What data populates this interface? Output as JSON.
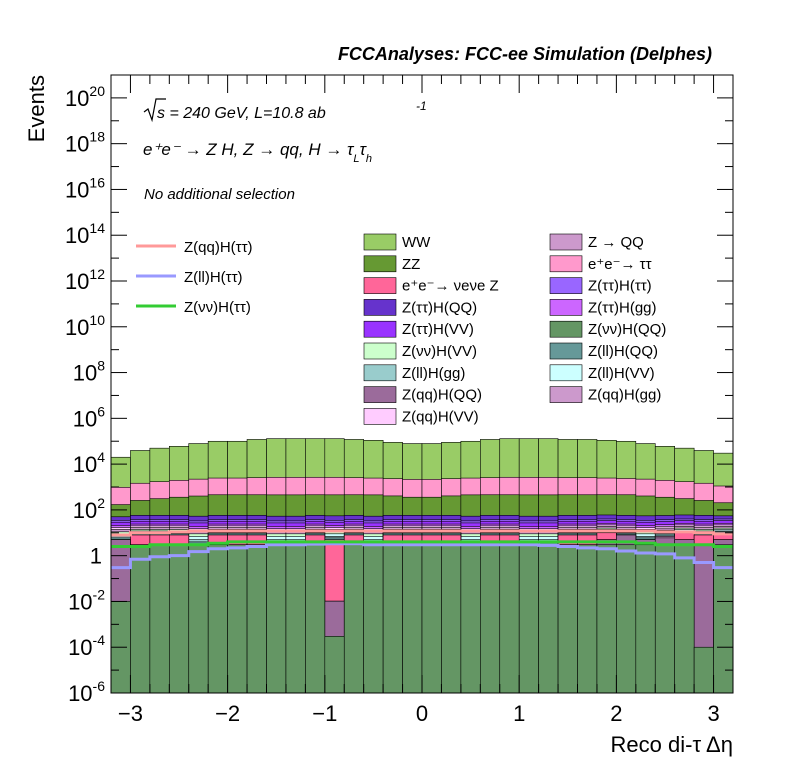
{
  "chart_data": {
    "type": "stacked-histogram",
    "title": "FCCAnalyses: FCC-ee Simulation (Delphes)",
    "xlabel": "Reco di-τ Δη",
    "ylabel": "Events",
    "xlim": [
      -3.2,
      3.2
    ],
    "ylim": [
      1e-06,
      1e+21
    ],
    "yscale": "log",
    "grid": false,
    "annotations": {
      "energy_sqrt": "s",
      "energy_rest": " = 240 GeV, L=10.8 ab",
      "energy_exp": "-1",
      "process_main": "e⁺e⁻ → Z H, Z → qq, H → τ",
      "process_sub1": "L",
      "process_mid": "τ",
      "process_sub2": "h",
      "selection": "No additional selection"
    },
    "x_ticks": [
      "−3",
      "−2",
      "−1",
      "0",
      "1",
      "2",
      "3"
    ],
    "y_ticks": [
      {
        "base": "10",
        "exp": "20",
        "value": 1e+20
      },
      {
        "base": "10",
        "exp": "18",
        "value": 1e+18
      },
      {
        "base": "10",
        "exp": "16",
        "value": 1e+16
      },
      {
        "base": "10",
        "exp": "14",
        "value": 100000000000000.0
      },
      {
        "base": "10",
        "exp": "12",
        "value": 1000000000000.0
      },
      {
        "base": "10",
        "exp": "10",
        "value": 10000000000.0
      },
      {
        "base": "10",
        "exp": "8",
        "value": 100000000.0
      },
      {
        "base": "10",
        "exp": "6",
        "value": 1000000.0
      },
      {
        "base": "10",
        "exp": "4",
        "value": 10000.0
      },
      {
        "base": "10",
        "exp": "2",
        "value": 100.0
      },
      {
        "base": "1",
        "exp": "",
        "value": 1
      },
      {
        "base": "10",
        "exp": "-2",
        "value": 0.01
      },
      {
        "base": "10",
        "exp": "-4",
        "value": 0.0001
      },
      {
        "base": "10",
        "exp": "-6",
        "value": 1e-06
      }
    ],
    "bin_count": 32,
    "stack_top_values": [
      20000.0,
      40000.0,
      50000.0,
      60000.0,
      80000.0,
      100000.0,
      100000.0,
      120000.0,
      130000.0,
      130000.0,
      130000.0,
      130000.0,
      120000.0,
      110000.0,
      90000.0,
      80000.0,
      80000.0,
      90000.0,
      100000.0,
      120000.0,
      130000.0,
      130000.0,
      130000.0,
      120000.0,
      120000.0,
      110000.0,
      100000.0,
      80000.0,
      60000.0,
      50000.0,
      40000.0,
      30000.0
    ],
    "background_stack": [
      {
        "name": "Z(νν)H(QQ)",
        "color": "#649664",
        "values": [
          0.01,
          3,
          3,
          3,
          3,
          3,
          3,
          3,
          3,
          3,
          3,
          0.0003,
          3,
          3,
          3,
          3,
          3,
          3,
          3,
          3,
          3,
          3,
          3,
          3,
          3,
          3,
          3,
          3,
          3,
          3,
          0.0001,
          3
        ]
      },
      {
        "name": "Z(qq)H(QQ)",
        "color": "#9b6b9b",
        "values": [
          5,
          0,
          0,
          0,
          0,
          0,
          0,
          0,
          0,
          0,
          0,
          0.01,
          0,
          0,
          0,
          0,
          0,
          0,
          0,
          0,
          0,
          0,
          0,
          0,
          0,
          2,
          5,
          2,
          3,
          2,
          3,
          2
        ]
      },
      {
        "name": "Z → QQ",
        "color": "#cc99cc",
        "values": [
          0,
          0,
          0,
          0,
          0,
          0,
          0,
          0,
          0,
          0,
          0,
          0,
          0,
          0,
          0,
          0,
          0,
          0,
          0,
          0,
          0,
          0,
          0,
          0,
          0,
          0,
          0,
          0,
          1,
          0,
          0,
          0
        ]
      },
      {
        "name": "e⁺e⁻→ νeνe Z",
        "color": "#ff6699",
        "values": [
          0,
          5,
          5,
          5,
          0,
          5,
          5,
          5,
          0,
          0,
          5,
          5,
          5,
          0,
          5,
          5,
          5,
          5,
          0,
          5,
          5,
          0,
          0,
          5,
          5,
          5,
          0,
          0,
          0,
          5,
          5,
          5
        ]
      },
      {
        "name": "Z(ll)H(QQ)",
        "color": "#669999",
        "values": [
          1,
          1,
          1,
          1,
          1,
          1,
          1,
          1,
          1,
          1,
          1,
          1,
          1,
          1,
          1,
          1,
          1,
          1,
          1,
          1,
          1,
          1,
          1,
          1,
          1,
          1,
          1,
          1,
          1,
          1,
          1,
          1
        ]
      },
      {
        "name": "Z(ll)H(gg)",
        "color": "#99cccc",
        "values": [
          1,
          1,
          1,
          1,
          1,
          1,
          1,
          1,
          1,
          1,
          1,
          1,
          1,
          1,
          1,
          1,
          1,
          1,
          1,
          1,
          1,
          1,
          1,
          1,
          1,
          1,
          1,
          1,
          1,
          1,
          1,
          1
        ]
      },
      {
        "name": "Z(ll)H(VV)",
        "color": "#ccffff",
        "values": [
          2,
          2,
          2,
          2,
          2,
          2,
          2,
          2,
          2,
          2,
          2,
          2,
          2,
          2,
          2,
          2,
          2,
          2,
          2,
          2,
          2,
          2,
          2,
          2,
          2,
          2,
          2,
          2,
          2,
          2,
          2,
          2
        ]
      },
      {
        "name": "Z(νν)H(VV)",
        "color": "#ccffcc",
        "values": [
          2,
          2,
          2,
          2,
          2,
          2,
          2,
          2,
          2,
          2,
          2,
          2,
          2,
          2,
          2,
          2,
          2,
          2,
          2,
          2,
          2,
          2,
          2,
          2,
          2,
          2,
          2,
          2,
          2,
          2,
          2,
          2
        ]
      },
      {
        "name": "Z(qq)H(gg)",
        "color": "#cc99cc",
        "values": [
          3,
          3,
          3,
          3,
          3,
          3,
          3,
          3,
          3,
          3,
          3,
          3,
          3,
          3,
          3,
          3,
          3,
          3,
          3,
          3,
          3,
          3,
          3,
          3,
          3,
          3,
          3,
          3,
          3,
          3,
          3,
          3
        ]
      },
      {
        "name": "Z(qq)H(VV)",
        "color": "#ffccff",
        "values": [
          3,
          3,
          3,
          3,
          3,
          3,
          3,
          3,
          3,
          3,
          3,
          3,
          3,
          3,
          3,
          3,
          3,
          3,
          3,
          3,
          3,
          3,
          3,
          3,
          3,
          3,
          3,
          3,
          3,
          3,
          3,
          3
        ]
      },
      {
        "name": "Z(ττ)H(gg)",
        "color": "#cc66ff",
        "values": [
          4,
          4,
          4,
          4,
          4,
          4,
          4,
          4,
          4,
          4,
          4,
          4,
          4,
          4,
          4,
          4,
          4,
          4,
          4,
          4,
          4,
          4,
          4,
          4,
          4,
          4,
          4,
          4,
          4,
          4,
          4,
          4
        ]
      },
      {
        "name": "Z(ττ)H(VV)",
        "color": "#9933ff",
        "values": [
          8,
          8,
          8,
          8,
          8,
          8,
          8,
          8,
          8,
          8,
          8,
          8,
          8,
          8,
          8,
          8,
          8,
          8,
          8,
          8,
          8,
          8,
          8,
          8,
          8,
          8,
          8,
          8,
          8,
          8,
          8,
          8
        ]
      },
      {
        "name": "Z(ττ)H(ττ)",
        "color": "#9966ff",
        "values": [
          6,
          6,
          6,
          6,
          6,
          6,
          6,
          6,
          6,
          6,
          6,
          6,
          6,
          6,
          6,
          6,
          6,
          6,
          6,
          6,
          6,
          6,
          6,
          6,
          6,
          6,
          6,
          6,
          6,
          6,
          6,
          6
        ]
      },
      {
        "name": "Z(ττ)H(QQ)",
        "color": "#6633cc",
        "values": [
          15,
          20,
          20,
          20,
          20,
          20,
          20,
          20,
          20,
          20,
          20,
          20,
          20,
          20,
          20,
          20,
          20,
          20,
          20,
          20,
          20,
          20,
          20,
          20,
          20,
          20,
          20,
          20,
          20,
          20,
          20,
          15
        ]
      },
      {
        "name": "ZZ",
        "color": "#669933",
        "values": [
          120,
          200,
          250,
          300,
          350,
          400,
          400,
          400,
          400,
          400,
          400,
          400,
          400,
          400,
          350,
          300,
          300,
          350,
          400,
          400,
          400,
          400,
          400,
          400,
          400,
          400,
          400,
          350,
          300,
          250,
          200,
          150
        ]
      },
      {
        "name": "e⁺e⁻→ ττ",
        "color": "#ff99cc",
        "values": [
          800,
          1200,
          1400,
          1600,
          1800,
          2000,
          2000,
          2100,
          2200,
          2200,
          2200,
          2200,
          2100,
          2000,
          1900,
          1800,
          1800,
          1900,
          2000,
          2100,
          2200,
          2200,
          2200,
          2100,
          2100,
          2000,
          1900,
          1800,
          1600,
          1400,
          1200,
          900
        ]
      },
      {
        "name": "WW",
        "color": "#99cc66",
        "values": [
          19000,
          38000,
          48000,
          58000,
          77000,
          97000,
          97000,
          117000,
          127000,
          127000,
          127000,
          127000,
          117000,
          107000,
          87000,
          77000,
          77000,
          87000,
          97000,
          117000,
          127000,
          127000,
          127000,
          117000,
          117000,
          107000,
          97000,
          77000,
          58000,
          48000,
          38000,
          29000
        ]
      }
    ],
    "signal_lines": [
      {
        "name": "Z(qq)H(ττ)",
        "color": "#ff9999",
        "values": [
          8,
          10,
          10,
          11,
          12,
          12,
          12,
          12,
          12,
          12,
          12,
          12,
          12,
          12,
          12,
          12,
          12,
          12,
          12,
          12,
          12,
          12,
          12,
          12,
          12,
          12,
          12,
          12,
          11,
          11,
          10,
          9
        ]
      },
      {
        "name": "Z(ll)H(ττ)",
        "color": "#9999ff",
        "values": [
          0.3,
          0.7,
          0.9,
          1.0,
          1.5,
          2.0,
          2.2,
          2.5,
          3.0,
          3.0,
          3.2,
          3.3,
          3.3,
          3.0,
          3.0,
          3.0,
          3.0,
          3.0,
          3.0,
          3.0,
          3.0,
          3.0,
          2.8,
          2.5,
          2.2,
          2.0,
          1.6,
          1.3,
          1.2,
          0.8,
          0.5,
          0.3
        ]
      },
      {
        "name": "Z(νν)H(ττ)",
        "color": "#33cc33",
        "values": [
          2.5,
          2.5,
          3,
          3,
          3,
          3.5,
          4,
          4,
          4,
          4,
          4,
          4,
          4,
          4,
          4,
          4,
          4,
          4,
          4,
          4,
          4,
          4,
          4,
          4,
          4,
          4,
          4,
          3.5,
          3,
          3,
          3,
          2.5
        ]
      }
    ],
    "legend_left": [
      "Z(qq)H(ττ)",
      "Z(ll)H(ττ)",
      "Z(νν)H(ττ)"
    ],
    "legend_mid": [
      {
        "name": "WW",
        "color": "#99cc66"
      },
      {
        "name": "ZZ",
        "color": "#669933"
      },
      {
        "name": "e⁺e⁻→ νeνe Z",
        "color": "#ff6699"
      },
      {
        "name": "Z(ττ)H(QQ)",
        "color": "#6633cc"
      },
      {
        "name": "Z(ττ)H(VV)",
        "color": "#9933ff"
      },
      {
        "name": "Z(νν)H(VV)",
        "color": "#ccffcc"
      },
      {
        "name": "Z(ll)H(gg)",
        "color": "#99cccc"
      },
      {
        "name": "Z(qq)H(QQ)",
        "color": "#9b6b9b"
      },
      {
        "name": "Z(qq)H(VV)",
        "color": "#ffccff"
      }
    ],
    "legend_right": [
      {
        "name": "Z → QQ",
        "color": "#cc99cc"
      },
      {
        "name": "e⁺e⁻→ ττ",
        "color": "#ff99cc"
      },
      {
        "name": "Z(ττ)H(ττ)",
        "color": "#9966ff"
      },
      {
        "name": "Z(ττ)H(gg)",
        "color": "#cc66ff"
      },
      {
        "name": "Z(νν)H(QQ)",
        "color": "#649664"
      },
      {
        "name": "Z(ll)H(QQ)",
        "color": "#669999"
      },
      {
        "name": "Z(ll)H(VV)",
        "color": "#ccffff"
      },
      {
        "name": "Z(qq)H(gg)",
        "color": "#cc99cc"
      }
    ]
  }
}
